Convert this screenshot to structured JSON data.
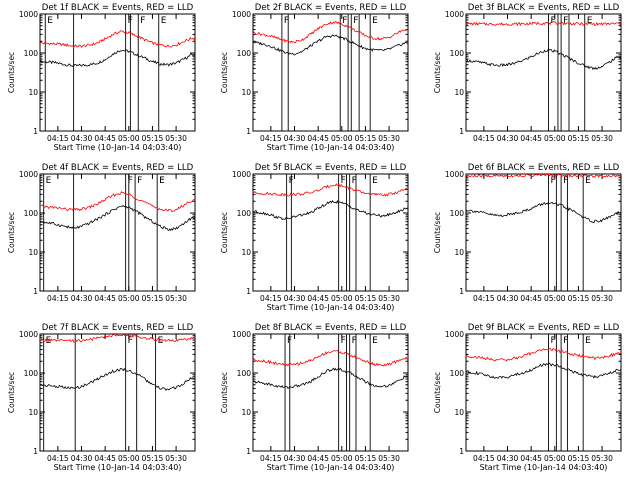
{
  "colors": {
    "events": "#000000",
    "lld": "#ff0000",
    "axis": "#000000",
    "background": "#ffffff"
  },
  "chart_data": [
    {
      "type": "line",
      "title": "Det 1f BLACK = Events, RED = LLD",
      "xlabel": "Start Time (10-Jan-14 04:03:40)",
      "ylabel": "Counts/sec",
      "yscale": "log",
      "ylim": [
        1,
        1000
      ],
      "x_ticks": [
        "04:15",
        "04:30",
        "04:45",
        "05:00",
        "05:15",
        "05:30"
      ],
      "y_ticks": [
        "1",
        "10",
        "100",
        "1000"
      ],
      "markers": [
        "E",
        "F",
        "F",
        "E"
      ],
      "x": [
        "04:04",
        "04:10",
        "04:15",
        "04:20",
        "04:25",
        "04:30",
        "04:35",
        "04:40",
        "04:45",
        "04:50",
        "04:55",
        "05:00",
        "05:05",
        "05:10",
        "05:15",
        "05:20",
        "05:25",
        "05:30",
        "05:35",
        "05:40"
      ],
      "series": [
        {
          "name": "Events",
          "values": [
            60,
            58,
            55,
            50,
            47,
            48,
            50,
            55,
            68,
            95,
            120,
            110,
            90,
            75,
            60,
            52,
            50,
            55,
            70,
            90
          ]
        },
        {
          "name": "LLD",
          "values": [
            180,
            175,
            170,
            160,
            150,
            150,
            160,
            180,
            230,
            300,
            360,
            330,
            270,
            220,
            180,
            160,
            150,
            160,
            200,
            240
          ]
        }
      ]
    },
    {
      "type": "line",
      "title": "Det 2f BLACK = Events, RED = LLD",
      "xlabel": "Start Time (10-Jan-14 04:03:40)",
      "ylabel": "Counts/sec",
      "yscale": "log",
      "ylim": [
        1,
        1000
      ],
      "x_ticks": [
        "04:15",
        "04:30",
        "04:45",
        "05:00",
        "05:15",
        "05:30"
      ],
      "y_ticks": [
        "1",
        "10",
        "100",
        "1000"
      ],
      "markers": [
        "F",
        "F",
        "F",
        "E"
      ],
      "x": [
        "04:04",
        "04:10",
        "04:15",
        "04:20",
        "04:25",
        "04:30",
        "04:35",
        "04:40",
        "04:45",
        "04:50",
        "04:55",
        "05:00",
        "05:05",
        "05:10",
        "05:15",
        "05:20",
        "05:25",
        "05:30",
        "05:35",
        "05:40"
      ],
      "series": [
        {
          "name": "Events",
          "values": [
            190,
            170,
            150,
            120,
            100,
            95,
            110,
            150,
            200,
            260,
            280,
            250,
            200,
            160,
            130,
            120,
            115,
            125,
            150,
            180
          ]
        },
        {
          "name": "LLD",
          "values": [
            330,
            300,
            270,
            230,
            200,
            190,
            220,
            300,
            420,
            550,
            620,
            560,
            450,
            350,
            280,
            240,
            230,
            250,
            320,
            400
          ]
        }
      ]
    },
    {
      "type": "line",
      "title": "Det 3f BLACK = Events, RED = LLD",
      "xlabel": "",
      "ylabel": "Counts/sec",
      "yscale": "log",
      "ylim": [
        1,
        1000
      ],
      "x_ticks": [
        "04:15",
        "04:30",
        "04:45",
        "05:00",
        "05:15",
        "05:30"
      ],
      "y_ticks": [
        "1",
        "10",
        "100",
        "1000"
      ],
      "markers": [
        "F",
        "F",
        "E"
      ],
      "x": [
        "04:04",
        "04:10",
        "04:15",
        "04:20",
        "04:25",
        "04:30",
        "04:35",
        "04:40",
        "04:45",
        "04:50",
        "04:55",
        "05:00",
        "05:05",
        "05:10",
        "05:15",
        "05:20",
        "05:25",
        "05:30",
        "05:35",
        "05:40"
      ],
      "series": [
        {
          "name": "Events",
          "values": [
            65,
            60,
            55,
            50,
            48,
            50,
            55,
            65,
            80,
            100,
            120,
            110,
            90,
            70,
            55,
            45,
            40,
            45,
            60,
            80
          ]
        },
        {
          "name": "LLD",
          "values": [
            560,
            560,
            555,
            550,
            550,
            550,
            555,
            560,
            570,
            580,
            590,
            585,
            575,
            565,
            560,
            555,
            550,
            555,
            560,
            570
          ]
        }
      ]
    },
    {
      "type": "line",
      "title": "Det 4f BLACK = Events, RED = LLD",
      "xlabel": "",
      "ylabel": "Counts/sec",
      "yscale": "log",
      "ylim": [
        1,
        1000
      ],
      "x_ticks": [
        "04:15",
        "04:30",
        "04:45",
        "05:00",
        "05:15",
        "05:30"
      ],
      "y_ticks": [
        "1",
        "10",
        "100",
        "1000"
      ],
      "markers": [
        "E",
        "F",
        "F",
        "F",
        "E"
      ],
      "x": [
        "04:04",
        "04:10",
        "04:15",
        "04:20",
        "04:25",
        "04:30",
        "04:35",
        "04:40",
        "04:45",
        "04:50",
        "04:55",
        "05:00",
        "05:05",
        "05:10",
        "05:15",
        "05:20",
        "05:25",
        "05:30",
        "05:35",
        "05:40"
      ],
      "series": [
        {
          "name": "Events",
          "values": [
            60,
            55,
            50,
            45,
            40,
            45,
            55,
            70,
            90,
            120,
            150,
            140,
            110,
            80,
            60,
            45,
            38,
            40,
            55,
            75
          ]
        },
        {
          "name": "LLD",
          "values": [
            150,
            140,
            135,
            125,
            120,
            125,
            140,
            170,
            220,
            280,
            330,
            300,
            240,
            190,
            150,
            125,
            115,
            120,
            160,
            210
          ]
        }
      ]
    },
    {
      "type": "line",
      "title": "Det 5f BLACK = Events, RED = LLD",
      "xlabel": "Start Time (10-Jan-14 04:03:40)",
      "ylabel": "Counts/sec",
      "yscale": "log",
      "ylim": [
        1,
        1000
      ],
      "x_ticks": [
        "04:15",
        "04:30",
        "04:45",
        "05:00",
        "05:15",
        "05:30"
      ],
      "y_ticks": [
        "1",
        "10",
        "100",
        "1000"
      ],
      "markers": [
        "F",
        "F",
        "F",
        "E"
      ],
      "x": [
        "04:04",
        "04:10",
        "04:15",
        "04:20",
        "04:25",
        "04:30",
        "04:35",
        "04:40",
        "04:45",
        "04:50",
        "04:55",
        "05:00",
        "05:05",
        "05:10",
        "05:15",
        "05:20",
        "05:25",
        "05:30",
        "05:35",
        "05:40"
      ],
      "series": [
        {
          "name": "Events",
          "values": [
            110,
            100,
            90,
            75,
            70,
            80,
            90,
            100,
            130,
            170,
            200,
            180,
            150,
            120,
            100,
            90,
            85,
            90,
            105,
            130
          ]
        },
        {
          "name": "LLD",
          "values": [
            330,
            320,
            310,
            300,
            295,
            300,
            310,
            330,
            380,
            460,
            540,
            500,
            430,
            360,
            320,
            300,
            290,
            300,
            340,
            400
          ]
        }
      ]
    },
    {
      "type": "line",
      "title": "Det 6f BLACK = Events, RED = LLD",
      "xlabel": "",
      "ylabel": "Counts/sec",
      "yscale": "log",
      "ylim": [
        1,
        1000
      ],
      "x_ticks": [
        "04:15",
        "04:30",
        "04:45",
        "05:00",
        "05:15",
        "05:30"
      ],
      "y_ticks": [
        "1",
        "10",
        "100",
        "1000"
      ],
      "markers": [
        "F",
        "F",
        "E"
      ],
      "x": [
        "04:04",
        "04:10",
        "04:15",
        "04:20",
        "04:25",
        "04:30",
        "04:35",
        "04:40",
        "04:45",
        "04:50",
        "04:55",
        "05:00",
        "05:05",
        "05:10",
        "05:15",
        "05:20",
        "05:25",
        "05:30",
        "05:35",
        "05:40"
      ],
      "series": [
        {
          "name": "Events",
          "values": [
            120,
            110,
            100,
            90,
            85,
            90,
            100,
            110,
            130,
            160,
            180,
            170,
            150,
            120,
            95,
            70,
            60,
            65,
            80,
            100
          ]
        },
        {
          "name": "LLD",
          "values": [
            880,
            885,
            890,
            895,
            900,
            900,
            905,
            910,
            920,
            930,
            940,
            935,
            925,
            915,
            905,
            895,
            890,
            890,
            900,
            910
          ]
        }
      ]
    },
    {
      "type": "line",
      "title": "Det 7f BLACK = Events, RED = LLD",
      "xlabel": "Start Time (10-Jan-14 04:03:40)",
      "ylabel": "Counts/sec",
      "yscale": "log",
      "ylim": [
        1,
        1000
      ],
      "x_ticks": [
        "04:15",
        "04:30",
        "04:45",
        "05:00",
        "05:15",
        "05:30"
      ],
      "y_ticks": [
        "1",
        "10",
        "100",
        "1000"
      ],
      "markers": [
        "E",
        "F",
        "E"
      ],
      "x": [
        "04:04",
        "04:10",
        "04:15",
        "04:20",
        "04:25",
        "04:30",
        "04:35",
        "04:40",
        "04:45",
        "04:50",
        "04:55",
        "05:00",
        "05:05",
        "05:10",
        "05:15",
        "05:20",
        "05:25",
        "05:30",
        "05:35",
        "05:40"
      ],
      "series": [
        {
          "name": "Events",
          "values": [
            50,
            47,
            45,
            42,
            40,
            45,
            55,
            70,
            90,
            110,
            125,
            115,
            95,
            70,
            50,
            40,
            38,
            42,
            55,
            75
          ]
        },
        {
          "name": "LLD",
          "values": [
            700,
            690,
            680,
            670,
            660,
            680,
            720,
            780,
            850,
            920,
            960,
            930,
            870,
            800,
            740,
            700,
            680,
            690,
            720,
            760
          ]
        }
      ]
    },
    {
      "type": "line",
      "title": "Det 8f BLACK = Events, RED = LLD",
      "xlabel": "Start Time (10-Jan-14 04:03:40)",
      "ylabel": "Counts/sec",
      "yscale": "log",
      "ylim": [
        1,
        1000
      ],
      "x_ticks": [
        "04:15",
        "04:30",
        "04:45",
        "05:00",
        "05:15",
        "05:30"
      ],
      "y_ticks": [
        "1",
        "10",
        "100",
        "1000"
      ],
      "markers": [
        "F",
        "F",
        "F",
        "E"
      ],
      "x": [
        "04:04",
        "04:10",
        "04:15",
        "04:20",
        "04:25",
        "04:30",
        "04:35",
        "04:40",
        "04:45",
        "04:50",
        "04:55",
        "05:00",
        "05:05",
        "05:10",
        "05:15",
        "05:20",
        "05:25",
        "05:30",
        "05:35",
        "05:40"
      ],
      "series": [
        {
          "name": "Events",
          "values": [
            60,
            55,
            50,
            45,
            43,
            45,
            50,
            60,
            80,
            110,
            130,
            120,
            100,
            80,
            60,
            48,
            45,
            48,
            60,
            80
          ]
        },
        {
          "name": "LLD",
          "values": [
            220,
            205,
            190,
            170,
            160,
            165,
            180,
            210,
            260,
            330,
            370,
            340,
            290,
            240,
            200,
            170,
            160,
            165,
            200,
            240
          ]
        }
      ]
    },
    {
      "type": "line",
      "title": "Det 9f BLACK = Events, RED = LLD",
      "xlabel": "Start Time (10-Jan-14 04:03:40)",
      "ylabel": "Counts/sec",
      "yscale": "log",
      "ylim": [
        1,
        1000
      ],
      "x_ticks": [
        "04:15",
        "04:30",
        "04:45",
        "05:00",
        "05:15",
        "05:30"
      ],
      "y_ticks": [
        "1",
        "10",
        "100",
        "1000"
      ],
      "markers": [
        "F",
        "F",
        "E"
      ],
      "x": [
        "04:04",
        "04:10",
        "04:15",
        "04:20",
        "04:25",
        "04:30",
        "04:35",
        "04:40",
        "04:45",
        "04:50",
        "04:55",
        "05:00",
        "05:05",
        "05:10",
        "05:15",
        "05:20",
        "05:25",
        "05:30",
        "05:35",
        "05:40"
      ],
      "series": [
        {
          "name": "Events",
          "values": [
            110,
            100,
            90,
            80,
            75,
            80,
            90,
            100,
            120,
            150,
            170,
            160,
            140,
            115,
            95,
            85,
            80,
            85,
            100,
            120
          ]
        },
        {
          "name": "LLD",
          "values": [
            270,
            255,
            240,
            225,
            215,
            220,
            240,
            270,
            320,
            380,
            410,
            390,
            350,
            310,
            280,
            255,
            240,
            245,
            280,
            320
          ]
        }
      ]
    }
  ]
}
